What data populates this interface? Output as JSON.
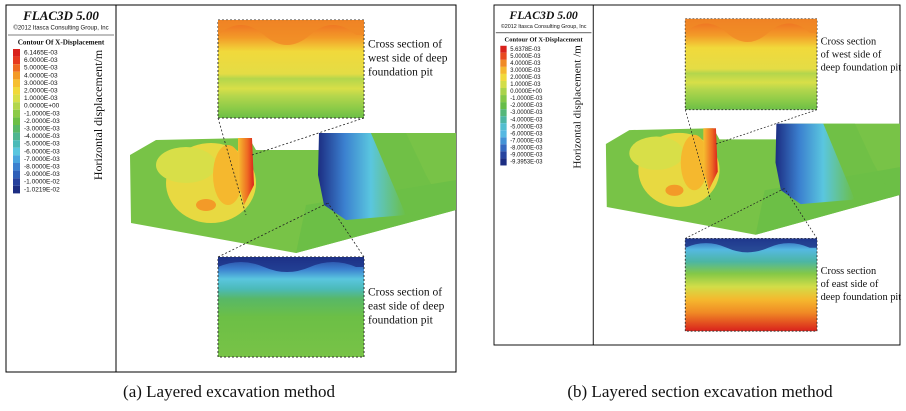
{
  "panels": [
    {
      "logo": "FLAC3D 5.00",
      "copyright": "©2012 Itasca Consulting Group, Inc",
      "legend_title": "Contour Of X-Displacement",
      "legend": [
        {
          "label": "6.1465E-03",
          "color": "#d9221c"
        },
        {
          "label": "6.0000E-03",
          "color": "#e63a1f"
        },
        {
          "label": "5.0000E-03",
          "color": "#ee6a22"
        },
        {
          "label": "4.0000E-03",
          "color": "#f39a28"
        },
        {
          "label": "3.0000E-03",
          "color": "#f6bf30"
        },
        {
          "label": "2.0000E-03",
          "color": "#f1d93b"
        },
        {
          "label": "1.0000E-03",
          "color": "#d8df48"
        },
        {
          "label": "0.0000E+00",
          "color": "#b3d64c"
        },
        {
          "label": "-1.0000E-03",
          "color": "#8ccb48"
        },
        {
          "label": "-2.0000E-03",
          "color": "#6cbf46"
        },
        {
          "label": "-3.0000E-03",
          "color": "#58b866"
        },
        {
          "label": "-4.0000E-03",
          "color": "#4fb690"
        },
        {
          "label": "-5.0000E-03",
          "color": "#4bbab8"
        },
        {
          "label": "-6.0000E-03",
          "color": "#5ac6df"
        },
        {
          "label": "-7.0000E-03",
          "color": "#49a5de"
        },
        {
          "label": "-8.0000E-03",
          "color": "#3b80cf"
        },
        {
          "label": "-9.0000E-03",
          "color": "#2f5fb8"
        },
        {
          "label": "-1.0000E-02",
          "color": "#26419d"
        },
        {
          "label": "-1.0219E-02",
          "color": "#1c2d82"
        }
      ],
      "axis_label": "Horizontal displacement/m",
      "callout_top": [
        "Cross section of",
        "west side of deep",
        "foundation pit"
      ],
      "callout_bottom": [
        "Cross section of",
        "east side of deep",
        "foundation pit"
      ],
      "caption": "(a) Layered excavation method"
    },
    {
      "logo": "FLAC3D 5.00",
      "copyright": "©2012 Itasca Consulting Group, Inc",
      "legend_title": "Contour Of X-Displacement",
      "legend": [
        {
          "label": "5.6378E-03",
          "color": "#d9221c"
        },
        {
          "label": "5.0000E-03",
          "color": "#e84a20"
        },
        {
          "label": "4.0000E-03",
          "color": "#f08a25"
        },
        {
          "label": "3.0000E-03",
          "color": "#f5b82e"
        },
        {
          "label": "2.0000E-03",
          "color": "#f1d93b"
        },
        {
          "label": "1.0000E-03",
          "color": "#d2dd48"
        },
        {
          "label": "0.0000E+00",
          "color": "#a9d34b"
        },
        {
          "label": "-1.0000E-03",
          "color": "#84c847"
        },
        {
          "label": "-2.0000E-03",
          "color": "#66bd48"
        },
        {
          "label": "-3.0000E-03",
          "color": "#55b77a"
        },
        {
          "label": "-4.0000E-03",
          "color": "#4cb6a4"
        },
        {
          "label": "-5.0000E-03",
          "color": "#52bfd0"
        },
        {
          "label": "-6.0000E-03",
          "color": "#55b8e2"
        },
        {
          "label": "-7.0000E-03",
          "color": "#4392d6"
        },
        {
          "label": "-8.0000E-03",
          "color": "#3469c0"
        },
        {
          "label": "-9.0000E-03",
          "color": "#27449f"
        },
        {
          "label": "-9.3953E-03",
          "color": "#1c2d82"
        }
      ],
      "axis_label": "Horizontal displacement /m",
      "callout_top": [
        "Cross section",
        "of west side of",
        "deep foundation pit"
      ],
      "callout_bottom": [
        "Cross section",
        "of east side of",
        "deep foundation pit"
      ],
      "caption": "(b) Layered section excavation method"
    }
  ]
}
